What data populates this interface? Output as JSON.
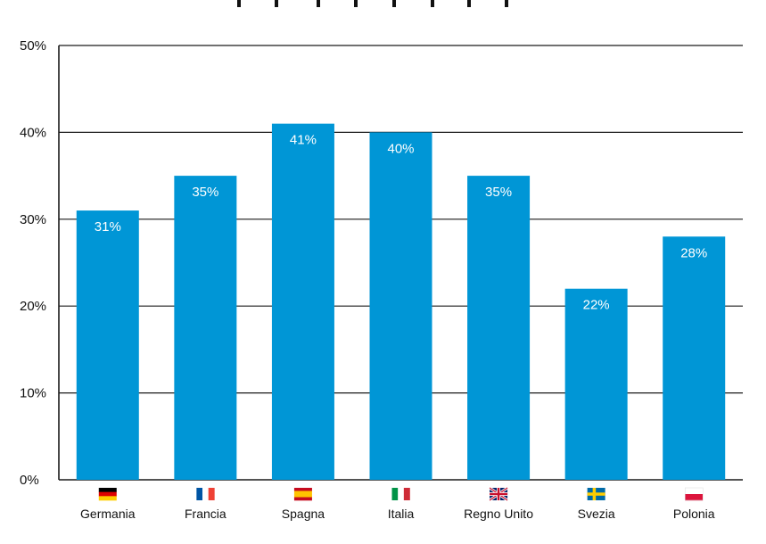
{
  "chart_data": {
    "type": "bar",
    "categories": [
      "Germania",
      "Francia",
      "Spagna",
      "Italia",
      "Regno Unito",
      "Svezia",
      "Polonia"
    ],
    "values": [
      31,
      35,
      41,
      40,
      35,
      22,
      28
    ],
    "value_labels": [
      "31%",
      "35%",
      "41%",
      "40%",
      "35%",
      "22%",
      "28%"
    ],
    "flags": [
      "germany-flag-icon",
      "france-flag-icon",
      "spain-flag-icon",
      "italy-flag-icon",
      "uk-flag-icon",
      "sweden-flag-icon",
      "poland-flag-icon"
    ],
    "y_ticks": [
      "0%",
      "10%",
      "20%",
      "30%",
      "40%",
      "50%"
    ],
    "ylim": [
      0,
      50
    ],
    "grid": true,
    "bar_color": "#0096d6",
    "title": "",
    "xlabel": "",
    "ylabel": ""
  }
}
